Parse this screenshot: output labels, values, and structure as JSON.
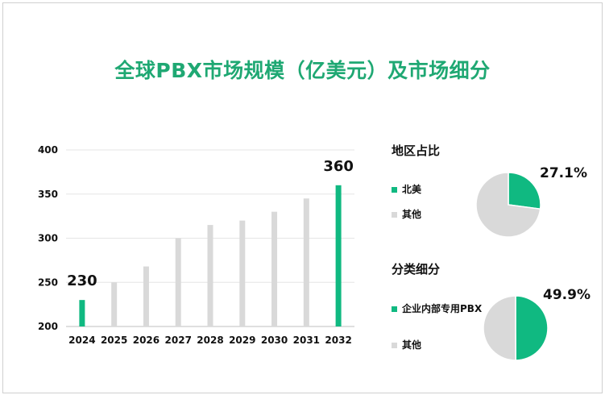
{
  "title": "全球PBX市场规模（亿美元）及市场细分",
  "colors": {
    "accent": "#10b981",
    "gray": "#d9d9d9",
    "title": "#1fa873"
  },
  "chart_data": [
    {
      "type": "bar",
      "categories": [
        "2024",
        "2025",
        "2026",
        "2027",
        "2028",
        "2029",
        "2030",
        "2031",
        "2032"
      ],
      "values": [
        230,
        250,
        268,
        300,
        315,
        320,
        330,
        345,
        360
      ],
      "highlight": [
        true,
        false,
        false,
        false,
        false,
        false,
        false,
        false,
        true
      ],
      "data_labels": [
        "230",
        "",
        "",
        "",
        "",
        "",
        "",
        "",
        "360"
      ],
      "ylim": [
        200,
        400
      ],
      "yticks": [
        "200",
        "250",
        "300",
        "350",
        "400"
      ],
      "xlabel": "",
      "ylabel": "",
      "grid": true
    },
    {
      "type": "pie",
      "title": "地区占比",
      "labels": [
        "北美",
        "其他"
      ],
      "values": [
        27.1,
        72.9
      ],
      "label_text": "27.1%"
    },
    {
      "type": "pie",
      "title": "分类细分",
      "labels": [
        "企业内部专用PBX",
        "其他"
      ],
      "values": [
        49.9,
        50.1
      ],
      "label_text": "49.9%"
    }
  ]
}
